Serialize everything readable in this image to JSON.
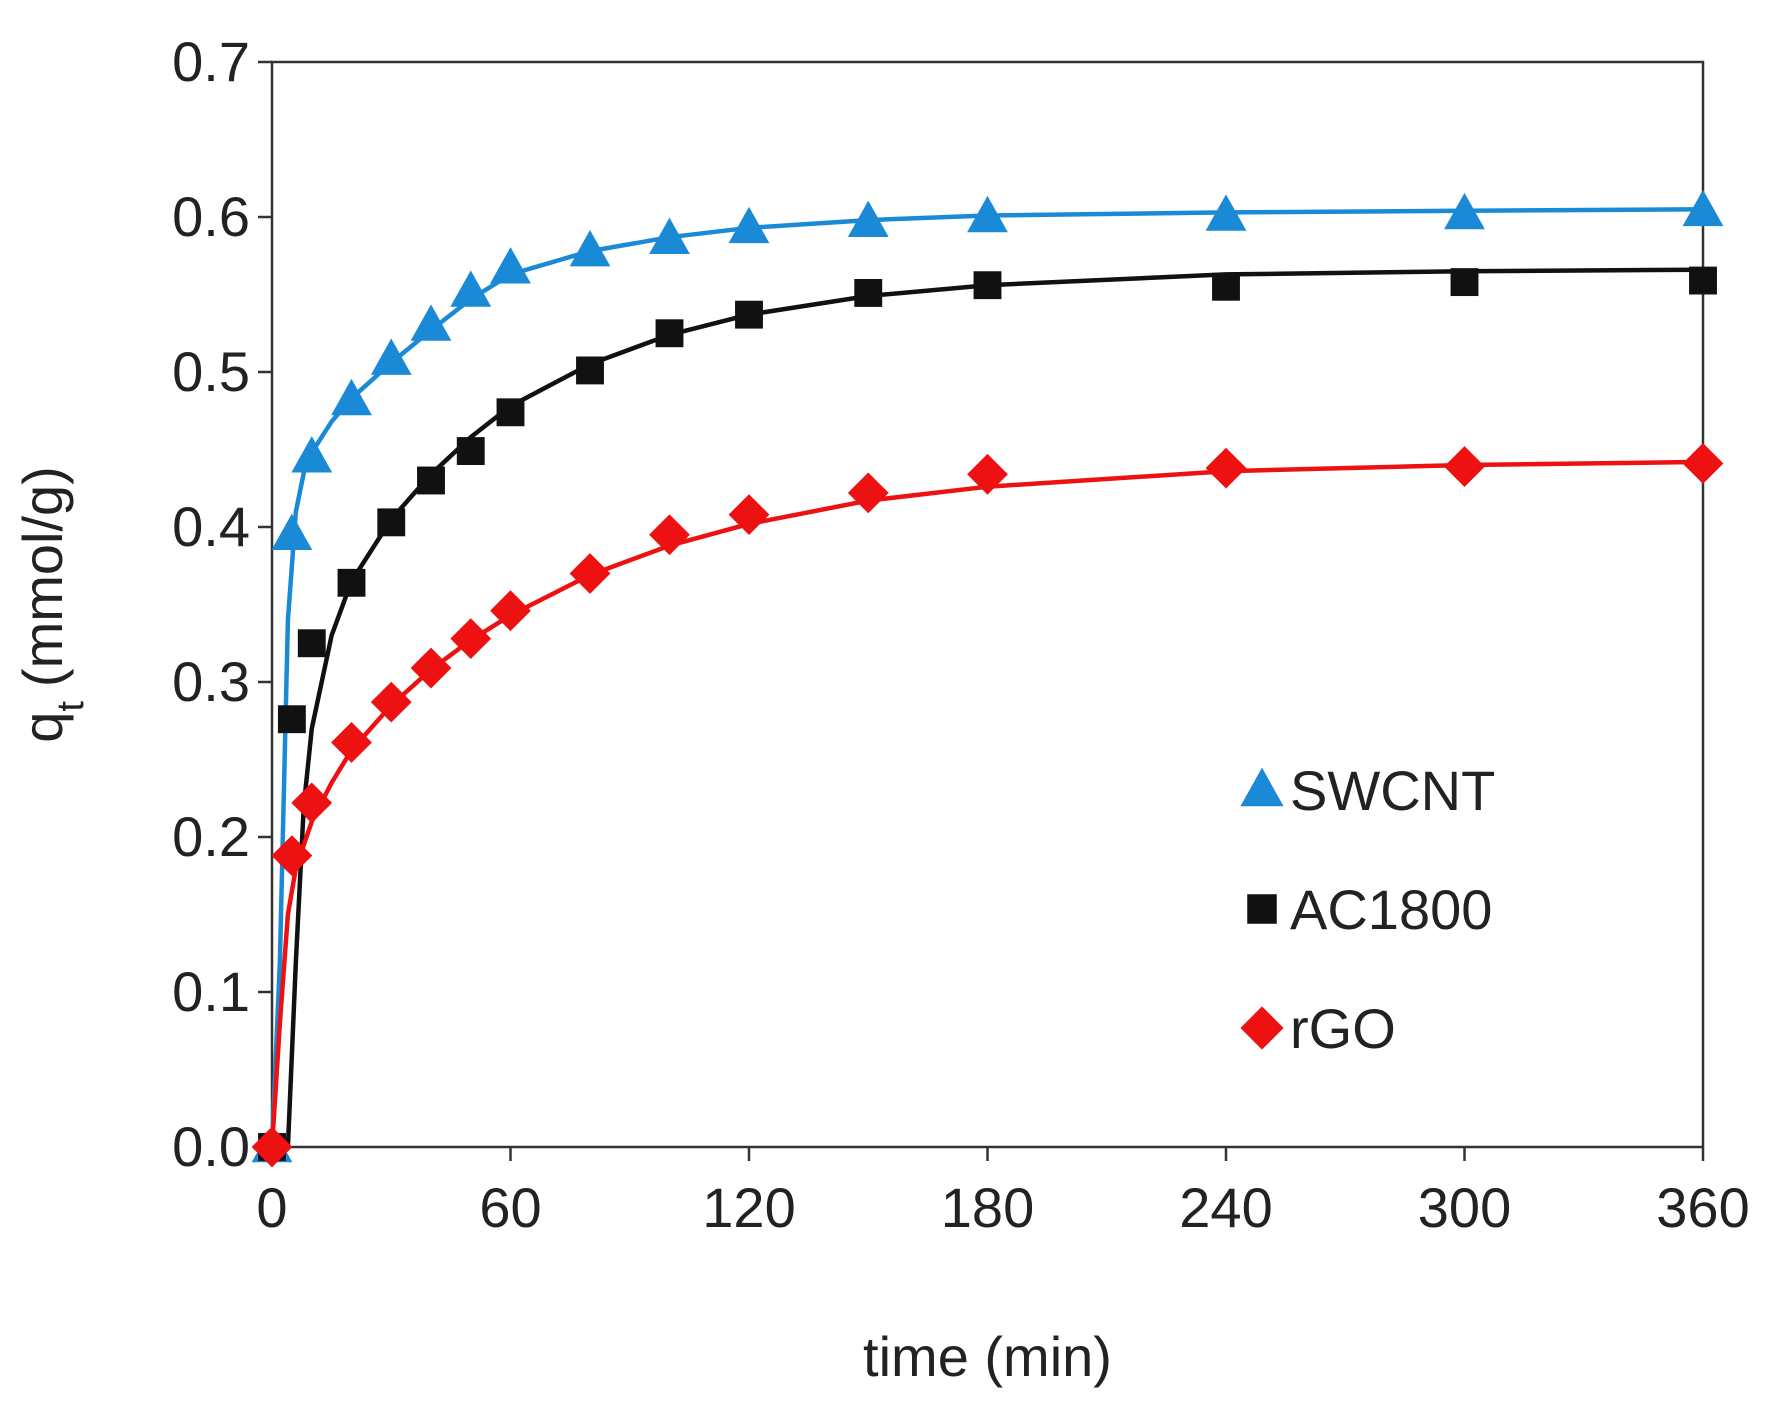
{
  "chart_data": {
    "type": "scatter",
    "xlabel": "time (min)",
    "ylabel_main": "q",
    "ylabel_sub": "t",
    "ylabel_unit": "(mmol/g)",
    "xlim": [
      0,
      360
    ],
    "ylim": [
      0,
      0.7
    ],
    "xticks": [
      "0",
      "60",
      "120",
      "180",
      "240",
      "300",
      "360"
    ],
    "yticks": [
      "0.0",
      "0.1",
      "0.2",
      "0.3",
      "0.4",
      "0.5",
      "0.6",
      "0.7"
    ],
    "grid": false,
    "legend_position": "center-right",
    "series": [
      {
        "name": "SWCNT",
        "marker": "triangle",
        "color": "#1b8ad6",
        "x": [
          0,
          5,
          10,
          20,
          30,
          40,
          50,
          60,
          80,
          100,
          120,
          150,
          180,
          240,
          300,
          360
        ],
        "y": [
          0.0,
          0.395,
          0.445,
          0.482,
          0.508,
          0.53,
          0.552,
          0.567,
          0.578,
          0.586,
          0.593,
          0.597,
          0.6,
          0.601,
          0.602,
          0.604
        ],
        "fit_x": [
          0,
          2,
          4,
          6,
          8,
          10,
          15,
          20,
          30,
          40,
          50,
          60,
          80,
          100,
          120,
          150,
          180,
          240,
          300,
          360
        ],
        "fit_y": [
          0.0,
          0.12,
          0.34,
          0.41,
          0.435,
          0.448,
          0.468,
          0.483,
          0.506,
          0.527,
          0.547,
          0.563,
          0.578,
          0.587,
          0.593,
          0.598,
          0.601,
          0.603,
          0.604,
          0.605
        ]
      },
      {
        "name": "AC1800",
        "marker": "square",
        "color": "#111111",
        "x": [
          0,
          5,
          10,
          20,
          30,
          40,
          50,
          60,
          80,
          100,
          120,
          150,
          180,
          240,
          300,
          360
        ],
        "y": [
          0.0,
          0.276,
          0.325,
          0.364,
          0.403,
          0.43,
          0.449,
          0.474,
          0.501,
          0.525,
          0.537,
          0.551,
          0.556,
          0.555,
          0.558,
          0.559
        ],
        "fit_x": [
          0,
          4,
          6,
          8,
          10,
          15,
          20,
          30,
          40,
          50,
          60,
          80,
          100,
          120,
          150,
          180,
          240,
          300,
          360
        ],
        "fit_y": [
          0.0,
          0.0,
          0.12,
          0.22,
          0.27,
          0.33,
          0.365,
          0.405,
          0.434,
          0.458,
          0.478,
          0.505,
          0.524,
          0.537,
          0.549,
          0.556,
          0.563,
          0.565,
          0.566
        ]
      },
      {
        "name": "rGO",
        "marker": "diamond",
        "color": "#ee1111",
        "x": [
          0,
          5,
          10,
          20,
          30,
          40,
          50,
          60,
          80,
          100,
          120,
          150,
          180,
          240,
          300,
          360
        ],
        "y": [
          0.0,
          0.188,
          0.222,
          0.261,
          0.287,
          0.309,
          0.328,
          0.346,
          0.37,
          0.395,
          0.408,
          0.422,
          0.434,
          0.438,
          0.439,
          0.441
        ],
        "fit_x": [
          0,
          2,
          4,
          6,
          10,
          15,
          20,
          30,
          40,
          50,
          60,
          80,
          100,
          120,
          150,
          180,
          240,
          300,
          360
        ],
        "fit_y": [
          0.0,
          0.08,
          0.15,
          0.18,
          0.21,
          0.235,
          0.256,
          0.285,
          0.308,
          0.327,
          0.343,
          0.369,
          0.388,
          0.402,
          0.417,
          0.426,
          0.436,
          0.44,
          0.442
        ]
      }
    ]
  }
}
